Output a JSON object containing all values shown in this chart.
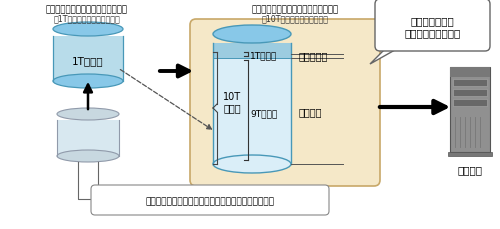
{
  "bg_color": "#ffffff",
  "box_color": "#f5e8c8",
  "box_border": "#c8a868",
  "cyl_top": "#88c8e8",
  "cyl_side": "#b8dcea",
  "cyl_rim": "#4898b8",
  "cyl_actual_fill": "#9ccce0",
  "cyl_empty_fill": "#daeef8",
  "title1": "【実際に割り当てるディスク容量】",
  "subtitle1": "（1Tバイトの物理リソース）",
  "title2": "【サーバーが認識するディスク容量】",
  "subtitle2": "（10Tバイトのボリューム）",
  "label_1t_left": "1Tバイト",
  "label_10t": "10T\nバイト",
  "label_1t_inside": "1Tバイト",
  "label_9t": "9Tバイト",
  "label_actual": "実データ量",
  "label_empty": "空き容量",
  "callout_text": "任意の大きさの\nボリュームを扱える",
  "bottom_note": "実データ量が増えてきたら物理ディスクを継ぎ足せる",
  "server_label": "サーバー"
}
